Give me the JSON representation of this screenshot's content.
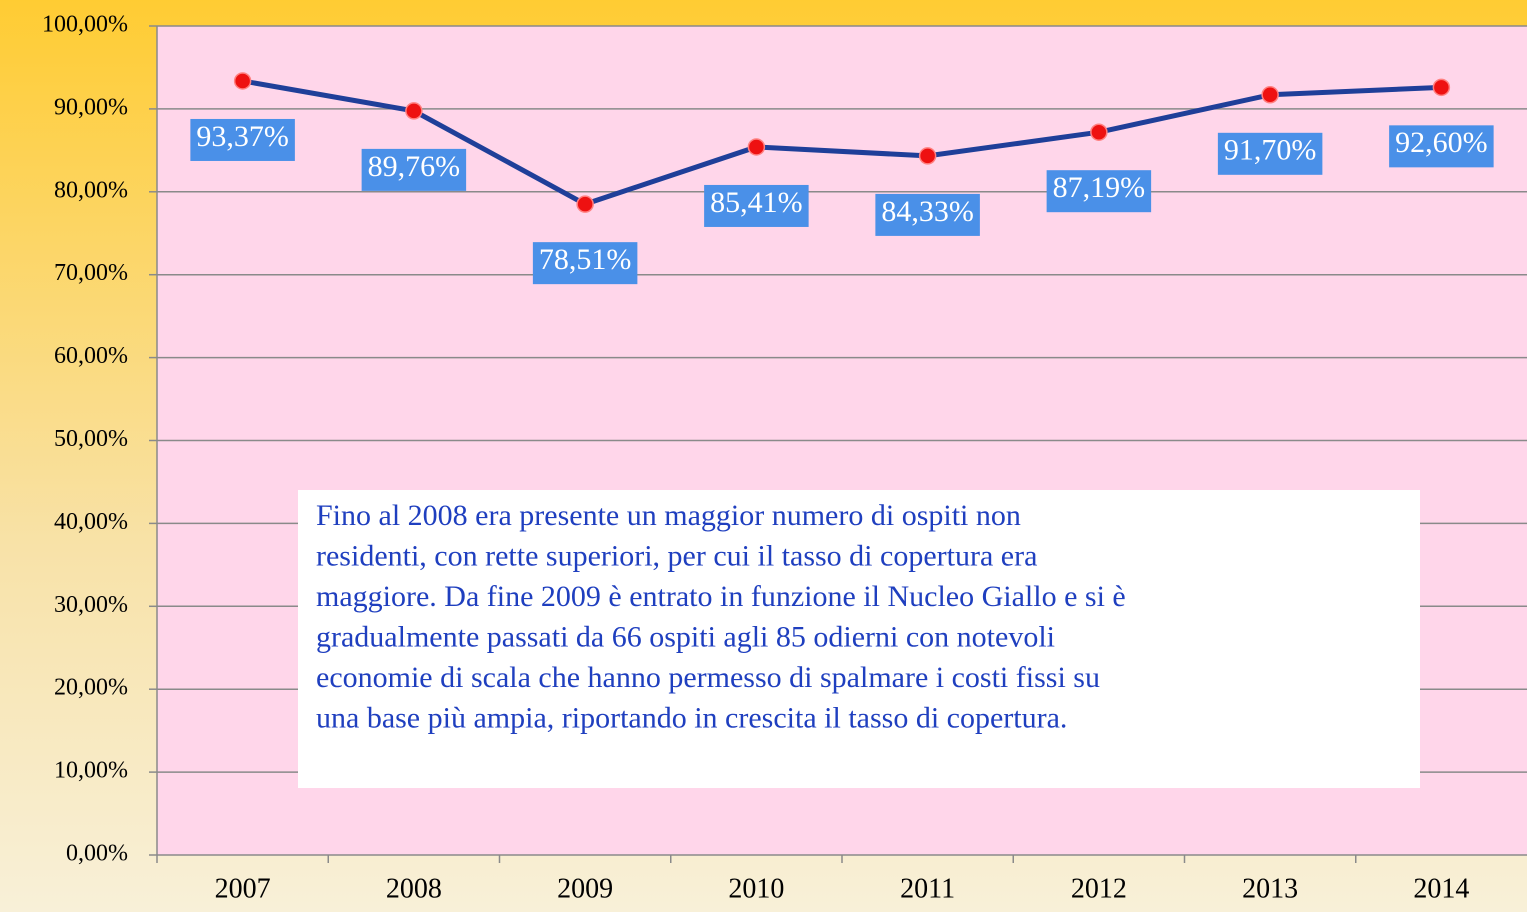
{
  "chart_data": {
    "type": "line",
    "categories": [
      "2007",
      "2008",
      "2009",
      "2010",
      "2011",
      "2012",
      "2013",
      "2014"
    ],
    "series": [
      {
        "color": "#1f3f99",
        "marker_color": "#ee1111",
        "values": [
          93.37,
          89.76,
          78.51,
          85.41,
          84.33,
          87.19,
          91.7,
          92.6
        ],
        "value_labels": [
          "93,37%",
          "89,76%",
          "78,51%",
          "85,41%",
          "84,33%",
          "87,19%",
          "91,70%",
          "92,60%"
        ]
      }
    ],
    "ylim": [
      0,
      100
    ],
    "yticks": [
      {
        "value": 0,
        "label": "0,00%"
      },
      {
        "value": 10,
        "label": "10,00%"
      },
      {
        "value": 20,
        "label": "20,00%"
      },
      {
        "value": 30,
        "label": "30,00%"
      },
      {
        "value": 40,
        "label": "40,00%"
      },
      {
        "value": 50,
        "label": "50,00%"
      },
      {
        "value": 60,
        "label": "60,00%"
      },
      {
        "value": 70,
        "label": "70,00%"
      },
      {
        "value": 80,
        "label": "80,00%"
      },
      {
        "value": 90,
        "label": "90,00%"
      },
      {
        "value": 100,
        "label": "100,00%"
      }
    ],
    "grid": true,
    "annotation": [
      "Fino al 2008 era presente un maggior numero di ospiti non",
      "residenti, con rette superiori, per cui il tasso di copertura era",
      "maggiore. Da fine 2009 è entrato in funzione il Nucleo Giallo e si è",
      "gradualmente passati da 66 ospiti agli 85 odierni con notevoli",
      "economie di scala che hanno permesso di spalmare i costi fissi su",
      "una base più ampia, riportando in crescita il tasso di copertura."
    ]
  }
}
